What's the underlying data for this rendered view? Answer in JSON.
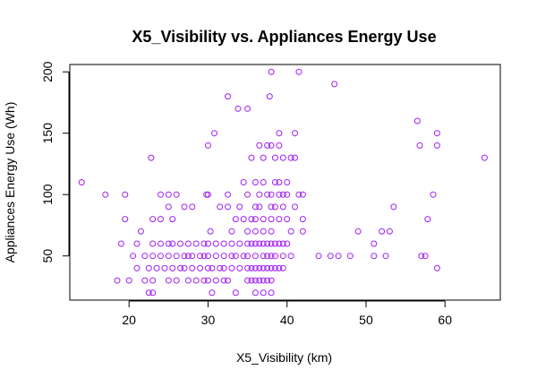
{
  "chart_data": {
    "type": "scatter",
    "title": "X5_Visibility vs. Appliances Energy Use",
    "xlabel": "X5_Visibility (km)",
    "ylabel": "Appliances Energy Use (Wh)",
    "xlim": [
      12.5,
      67
    ],
    "ylim": [
      14,
      206
    ],
    "x_ticks": [
      20,
      30,
      40,
      50,
      60
    ],
    "y_ticks": [
      50,
      100,
      150,
      200
    ],
    "point_color": "#a020f0",
    "grid": false,
    "points": [
      [
        14,
        110
      ],
      [
        17,
        100
      ],
      [
        18.5,
        30
      ],
      [
        19,
        60
      ],
      [
        19.5,
        80
      ],
      [
        19.5,
        100
      ],
      [
        20,
        30
      ],
      [
        20.5,
        50
      ],
      [
        21,
        60
      ],
      [
        21,
        40
      ],
      [
        21.5,
        70
      ],
      [
        22,
        50
      ],
      [
        22,
        30
      ],
      [
        22.5,
        20
      ],
      [
        22.5,
        40
      ],
      [
        23,
        20
      ],
      [
        23,
        30
      ],
      [
        23,
        50
      ],
      [
        23,
        60
      ],
      [
        23,
        80
      ],
      [
        22.8,
        130
      ],
      [
        23.5,
        40
      ],
      [
        24,
        50
      ],
      [
        24,
        60
      ],
      [
        24,
        80
      ],
      [
        24,
        100
      ],
      [
        24.5,
        40
      ],
      [
        25,
        30
      ],
      [
        25,
        50
      ],
      [
        25,
        60
      ],
      [
        25,
        90
      ],
      [
        25,
        100
      ],
      [
        25.5,
        40
      ],
      [
        25.5,
        60
      ],
      [
        25.5,
        80
      ],
      [
        26,
        30
      ],
      [
        26,
        50
      ],
      [
        26,
        100
      ],
      [
        26.5,
        40
      ],
      [
        26.5,
        60
      ],
      [
        27,
        40
      ],
      [
        27,
        50
      ],
      [
        27,
        90
      ],
      [
        27.5,
        30
      ],
      [
        27.5,
        50
      ],
      [
        27.5,
        60
      ],
      [
        28,
        40
      ],
      [
        28,
        50
      ],
      [
        28,
        90
      ],
      [
        28.5,
        30
      ],
      [
        28.5,
        60
      ],
      [
        29,
        40
      ],
      [
        29,
        50
      ],
      [
        29.5,
        30
      ],
      [
        29.5,
        50
      ],
      [
        29.5,
        60
      ],
      [
        29.8,
        100
      ],
      [
        30,
        30
      ],
      [
        30,
        40
      ],
      [
        30,
        50
      ],
      [
        30,
        60
      ],
      [
        30,
        100
      ],
      [
        30,
        140
      ],
      [
        30.3,
        70
      ],
      [
        30.5,
        20
      ],
      [
        30.5,
        40
      ],
      [
        30.8,
        150
      ],
      [
        31,
        30
      ],
      [
        31,
        50
      ],
      [
        31,
        60
      ],
      [
        31.5,
        40
      ],
      [
        31.5,
        90
      ],
      [
        32,
        30
      ],
      [
        32,
        40
      ],
      [
        32,
        50
      ],
      [
        32,
        60
      ],
      [
        32.5,
        30
      ],
      [
        32.5,
        90
      ],
      [
        32.5,
        100
      ],
      [
        32.5,
        180
      ],
      [
        33,
        40
      ],
      [
        33,
        50
      ],
      [
        33,
        60
      ],
      [
        33,
        70
      ],
      [
        33.5,
        20
      ],
      [
        33.5,
        50
      ],
      [
        33.5,
        80
      ],
      [
        33.8,
        170
      ],
      [
        34,
        40
      ],
      [
        34,
        60
      ],
      [
        34,
        90
      ],
      [
        34.5,
        50
      ],
      [
        34.5,
        80
      ],
      [
        34.5,
        110
      ],
      [
        35,
        30
      ],
      [
        35,
        40
      ],
      [
        35,
        50
      ],
      [
        35,
        60
      ],
      [
        35,
        70
      ],
      [
        35,
        100
      ],
      [
        35,
        170
      ],
      [
        35.5,
        30
      ],
      [
        35.5,
        40
      ],
      [
        35.5,
        60
      ],
      [
        35.5,
        80
      ],
      [
        35.5,
        130
      ],
      [
        36,
        20
      ],
      [
        36,
        30
      ],
      [
        36,
        40
      ],
      [
        36,
        50
      ],
      [
        36,
        60
      ],
      [
        36,
        70
      ],
      [
        36,
        80
      ],
      [
        36,
        90
      ],
      [
        36,
        110
      ],
      [
        36.5,
        30
      ],
      [
        36.5,
        40
      ],
      [
        36.5,
        60
      ],
      [
        36.5,
        90
      ],
      [
        36.5,
        100
      ],
      [
        36.5,
        140
      ],
      [
        37,
        20
      ],
      [
        37,
        30
      ],
      [
        37,
        40
      ],
      [
        37,
        50
      ],
      [
        37,
        60
      ],
      [
        37,
        70
      ],
      [
        37,
        80
      ],
      [
        37,
        110
      ],
      [
        37,
        130
      ],
      [
        37.5,
        30
      ],
      [
        37.5,
        40
      ],
      [
        37.5,
        50
      ],
      [
        37.5,
        60
      ],
      [
        37.5,
        100
      ],
      [
        37.5,
        140
      ],
      [
        37.8,
        180
      ],
      [
        38,
        20
      ],
      [
        38,
        30
      ],
      [
        38,
        40
      ],
      [
        38,
        50
      ],
      [
        38,
        60
      ],
      [
        38,
        70
      ],
      [
        38,
        80
      ],
      [
        38,
        90
      ],
      [
        38,
        100
      ],
      [
        38,
        140
      ],
      [
        38,
        200
      ],
      [
        38.5,
        40
      ],
      [
        38.5,
        50
      ],
      [
        38.5,
        60
      ],
      [
        38.5,
        90
      ],
      [
        38.5,
        110
      ],
      [
        38.5,
        130
      ],
      [
        39,
        40
      ],
      [
        39,
        60
      ],
      [
        39,
        80
      ],
      [
        39,
        100
      ],
      [
        39,
        110
      ],
      [
        39,
        140
      ],
      [
        39,
        150
      ],
      [
        39.5,
        40
      ],
      [
        39.5,
        50
      ],
      [
        39.5,
        60
      ],
      [
        39.5,
        90
      ],
      [
        39.5,
        100
      ],
      [
        39.5,
        130
      ],
      [
        40,
        60
      ],
      [
        40,
        80
      ],
      [
        40,
        100
      ],
      [
        40,
        110
      ],
      [
        40.5,
        50
      ],
      [
        40.5,
        70
      ],
      [
        40.5,
        130
      ],
      [
        41,
        90
      ],
      [
        41,
        130
      ],
      [
        41,
        150
      ],
      [
        41.5,
        100
      ],
      [
        41.5,
        200
      ],
      [
        42,
        70
      ],
      [
        42,
        80
      ],
      [
        42,
        100
      ],
      [
        44,
        50
      ],
      [
        45.5,
        50
      ],
      [
        46,
        190
      ],
      [
        46.5,
        50
      ],
      [
        48,
        50
      ],
      [
        49,
        70
      ],
      [
        51,
        60
      ],
      [
        51,
        50
      ],
      [
        52,
        70
      ],
      [
        52.5,
        50
      ],
      [
        53,
        70
      ],
      [
        53.5,
        90
      ],
      [
        56.5,
        160
      ],
      [
        56.8,
        140
      ],
      [
        57,
        50
      ],
      [
        57.5,
        50
      ],
      [
        57.8,
        80
      ],
      [
        58.5,
        100
      ],
      [
        59,
        150
      ],
      [
        59,
        140
      ],
      [
        59,
        40
      ],
      [
        65,
        130
      ]
    ]
  }
}
